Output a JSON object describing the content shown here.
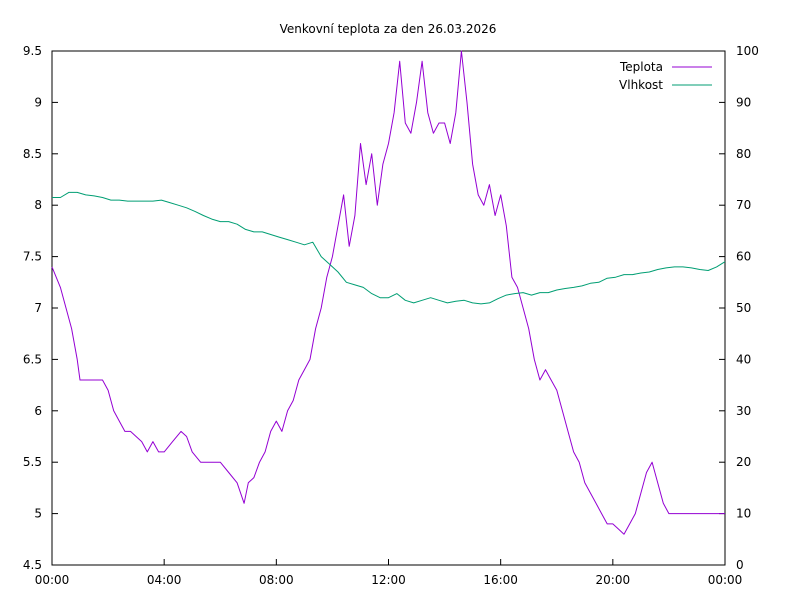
{
  "chart_data": {
    "type": "line",
    "title": "Venkovní teplota za den 26.03.2026",
    "xlabel": "",
    "ylabel": "",
    "y2label": "",
    "x_ticks": [
      "00:00",
      "04:00",
      "08:00",
      "12:00",
      "16:00",
      "20:00",
      "00:00"
    ],
    "xlim_hours": [
      0,
      24
    ],
    "ylim": [
      4.5,
      9.5
    ],
    "y_ticks": [
      "4.5",
      "5",
      "5.5",
      "6",
      "6.5",
      "7",
      "7.5",
      "8",
      "8.5",
      "9",
      "9.5"
    ],
    "y2lim": [
      0,
      100
    ],
    "y2_ticks": [
      "0",
      "10",
      "20",
      "30",
      "40",
      "50",
      "60",
      "70",
      "80",
      "90",
      "100"
    ],
    "grid": false,
    "legend_position": "top-right",
    "series": [
      {
        "name": "Teplota",
        "axis": "left",
        "color": "#9400d3",
        "x": [
          0,
          0.3,
          0.5,
          0.7,
          0.9,
          1.0,
          1.2,
          1.5,
          1.8,
          2.0,
          2.2,
          2.4,
          2.6,
          2.8,
          3.0,
          3.2,
          3.4,
          3.6,
          3.8,
          4.0,
          4.3,
          4.6,
          4.8,
          5.0,
          5.3,
          5.6,
          6.0,
          6.3,
          6.6,
          6.85,
          7.0,
          7.2,
          7.4,
          7.6,
          7.8,
          8.0,
          8.2,
          8.4,
          8.6,
          8.8,
          9.0,
          9.2,
          9.4,
          9.6,
          9.8,
          10.0,
          10.2,
          10.4,
          10.6,
          10.8,
          11.0,
          11.2,
          11.4,
          11.6,
          11.8,
          12.0,
          12.2,
          12.4,
          12.6,
          12.8,
          13.0,
          13.2,
          13.4,
          13.6,
          13.8,
          14.0,
          14.2,
          14.4,
          14.6,
          14.8,
          15.0,
          15.2,
          15.4,
          15.6,
          15.8,
          16.0,
          16.2,
          16.4,
          16.6,
          16.8,
          17.0,
          17.2,
          17.4,
          17.6,
          17.8,
          18.0,
          18.2,
          18.4,
          18.6,
          18.8,
          19.0,
          19.2,
          19.4,
          19.6,
          19.8,
          20.0,
          20.2,
          20.4,
          20.6,
          20.8,
          21.0,
          21.2,
          21.4,
          21.6,
          21.8,
          22.0,
          22.2,
          22.4,
          22.6,
          22.8,
          23.0,
          23.2,
          23.4,
          23.6,
          23.8,
          24.0
        ],
        "values": [
          7.4,
          7.2,
          7.0,
          6.8,
          6.5,
          6.3,
          6.3,
          6.3,
          6.3,
          6.2,
          6.0,
          5.9,
          5.8,
          5.8,
          5.75,
          5.7,
          5.6,
          5.7,
          5.6,
          5.6,
          5.7,
          5.8,
          5.75,
          5.6,
          5.5,
          5.5,
          5.5,
          5.4,
          5.3,
          5.1,
          5.3,
          5.35,
          5.5,
          5.6,
          5.8,
          5.9,
          5.8,
          6.0,
          6.1,
          6.3,
          6.4,
          6.5,
          6.8,
          7.0,
          7.3,
          7.5,
          7.8,
          8.1,
          7.6,
          7.9,
          8.6,
          8.2,
          8.5,
          8.0,
          8.4,
          8.6,
          8.9,
          9.4,
          8.8,
          8.7,
          9.0,
          9.4,
          8.9,
          8.7,
          8.8,
          8.8,
          8.6,
          8.9,
          9.5,
          9.0,
          8.4,
          8.1,
          8.0,
          8.2,
          7.9,
          8.1,
          7.8,
          7.3,
          7.2,
          7.0,
          6.8,
          6.5,
          6.3,
          6.4,
          6.3,
          6.2,
          6.0,
          5.8,
          5.6,
          5.5,
          5.3,
          5.2,
          5.1,
          5.0,
          4.9,
          4.9,
          4.85,
          4.8,
          4.9,
          5.0,
          5.2,
          5.4,
          5.5,
          5.3,
          5.1,
          5.0,
          5.0,
          5.0,
          5.0,
          5.0,
          5.0,
          5.0,
          5.0,
          5.0,
          5.0,
          5.0
        ]
      },
      {
        "name": "Vlhkost",
        "axis": "right",
        "color": "#009e73",
        "x": [
          0,
          0.3,
          0.6,
          0.9,
          1.2,
          1.5,
          1.8,
          2.1,
          2.4,
          2.7,
          3.0,
          3.3,
          3.6,
          3.9,
          4.2,
          4.5,
          4.8,
          5.1,
          5.4,
          5.7,
          6.0,
          6.3,
          6.6,
          6.9,
          7.2,
          7.5,
          7.8,
          8.1,
          8.4,
          8.7,
          9.0,
          9.3,
          9.6,
          9.9,
          10.2,
          10.5,
          10.8,
          11.1,
          11.4,
          11.7,
          12.0,
          12.3,
          12.6,
          12.9,
          13.2,
          13.5,
          13.8,
          14.1,
          14.4,
          14.7,
          15.0,
          15.3,
          15.6,
          15.9,
          16.2,
          16.5,
          16.8,
          17.1,
          17.4,
          17.7,
          18.0,
          18.3,
          18.6,
          18.9,
          19.2,
          19.5,
          19.8,
          20.1,
          20.4,
          20.7,
          21.0,
          21.3,
          21.6,
          21.9,
          22.2,
          22.5,
          22.8,
          23.1,
          23.4,
          23.7,
          24.0
        ],
        "values": [
          71.5,
          71.5,
          72.5,
          72.5,
          72.0,
          71.8,
          71.5,
          71.0,
          71.0,
          70.8,
          70.8,
          70.8,
          70.8,
          71.0,
          70.5,
          70.0,
          69.5,
          68.8,
          68.0,
          67.3,
          66.8,
          66.8,
          66.3,
          65.3,
          64.8,
          64.8,
          64.3,
          63.8,
          63.3,
          62.8,
          62.3,
          62.8,
          60.0,
          58.5,
          57.0,
          55.0,
          54.5,
          54.0,
          52.8,
          52.0,
          52.0,
          52.8,
          51.5,
          51.0,
          51.5,
          52.0,
          51.5,
          51.0,
          51.3,
          51.5,
          51.0,
          50.8,
          51.0,
          51.8,
          52.5,
          52.8,
          53.0,
          52.5,
          53.0,
          53.0,
          53.5,
          53.8,
          54.0,
          54.3,
          54.8,
          55.0,
          55.8,
          56.0,
          56.5,
          56.5,
          56.8,
          57.0,
          57.5,
          57.8,
          58.0,
          58.0,
          57.8,
          57.5,
          57.3,
          58.0,
          59.0
        ]
      }
    ]
  }
}
